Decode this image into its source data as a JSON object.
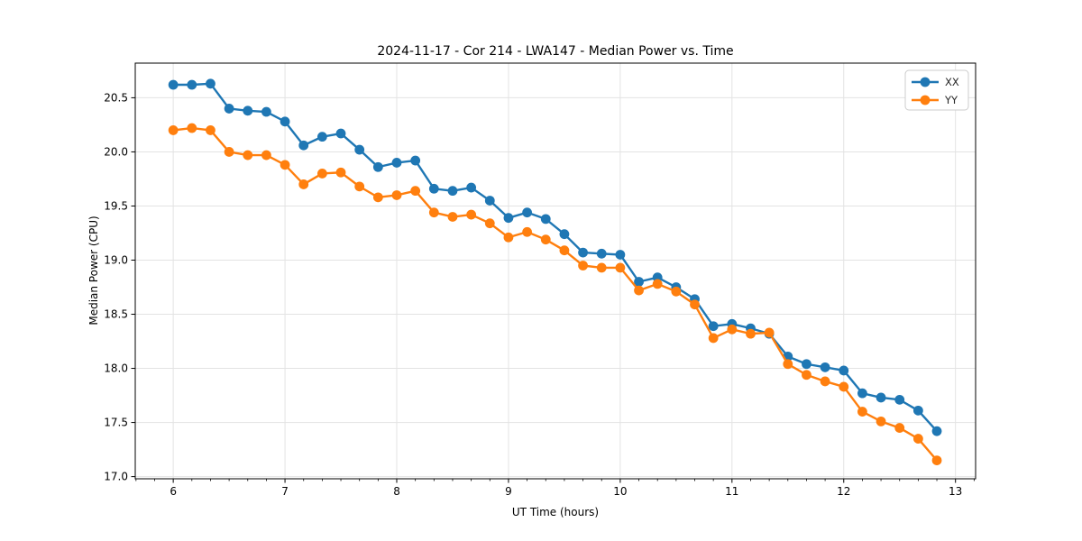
{
  "chart_data": {
    "type": "line",
    "title": "2024-11-17 - Cor 214 - LWA147 - Median Power vs. Time",
    "xlabel": "UT Time (hours)",
    "ylabel": "Median Power (CPU)",
    "xlim": [
      5.66,
      13.18
    ],
    "ylim": [
      16.98,
      20.82
    ],
    "xticks": [
      6,
      7,
      8,
      9,
      10,
      11,
      12,
      13
    ],
    "xtick_labels": [
      "6",
      "7",
      "8",
      "9",
      "10",
      "11",
      "12",
      "13"
    ],
    "yticks": [
      17.0,
      17.5,
      18.0,
      18.5,
      19.0,
      19.5,
      20.0,
      20.5
    ],
    "ytick_labels": [
      "17.0",
      "17.5",
      "18.0",
      "18.5",
      "19.0",
      "19.5",
      "20.0",
      "20.5"
    ],
    "minor_xtick_step": 0.16666667,
    "grid": true,
    "grid_color": "#e3e3e3",
    "axes_color": "#000000",
    "legend": {
      "position": "top-right",
      "entries": [
        "XX",
        "YY"
      ]
    },
    "x": [
      6.0,
      6.1667,
      6.3333,
      6.5,
      6.6667,
      6.8333,
      7.0,
      7.1667,
      7.3333,
      7.5,
      7.6667,
      7.8333,
      8.0,
      8.1667,
      8.3333,
      8.5,
      8.6667,
      8.8333,
      9.0,
      9.1667,
      9.3333,
      9.5,
      9.6667,
      9.8333,
      10.0,
      10.1667,
      10.3333,
      10.5,
      10.6667,
      10.8333,
      11.0,
      11.1667,
      11.3333,
      11.5,
      11.6667,
      11.8333,
      12.0,
      12.1667,
      12.3333,
      12.5,
      12.6667,
      12.8333
    ],
    "series": [
      {
        "name": "XX",
        "color": "#1f77b4",
        "values": [
          20.62,
          20.62,
          20.63,
          20.4,
          20.38,
          20.37,
          20.28,
          20.06,
          20.14,
          20.17,
          20.02,
          19.86,
          19.9,
          19.92,
          19.66,
          19.64,
          19.67,
          19.55,
          19.39,
          19.44,
          19.38,
          19.24,
          19.07,
          19.06,
          19.05,
          18.8,
          18.84,
          18.75,
          18.64,
          18.39,
          18.41,
          18.37,
          18.32,
          18.11,
          18.04,
          18.01,
          17.98,
          17.77,
          17.73,
          17.71,
          17.61,
          17.42
        ]
      },
      {
        "name": "YY",
        "color": "#ff7f0e",
        "values": [
          20.2,
          20.22,
          20.2,
          20.0,
          19.97,
          19.97,
          19.88,
          19.7,
          19.8,
          19.81,
          19.68,
          19.58,
          19.6,
          19.64,
          19.44,
          19.4,
          19.42,
          19.34,
          19.21,
          19.26,
          19.19,
          19.09,
          18.95,
          18.93,
          18.93,
          18.72,
          18.78,
          18.71,
          18.59,
          18.28,
          18.36,
          18.32,
          18.33,
          18.04,
          17.94,
          17.88,
          17.83,
          17.6,
          17.51,
          17.45,
          17.35,
          17.15
        ]
      }
    ]
  }
}
